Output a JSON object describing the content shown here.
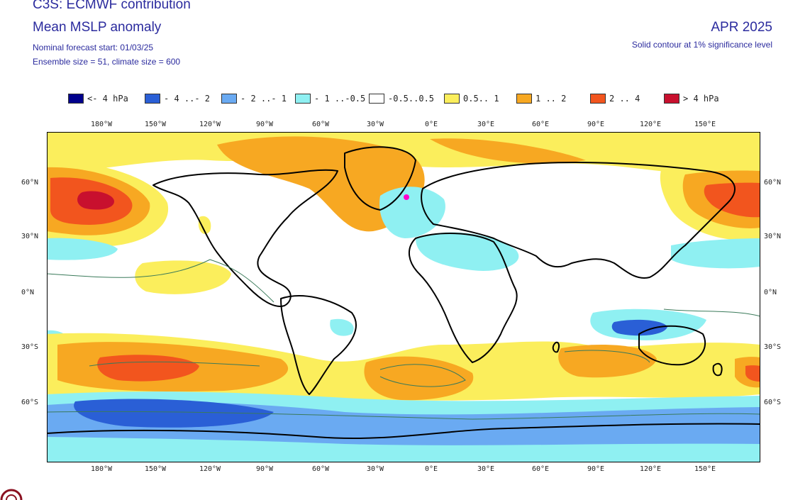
{
  "header": {
    "title": "C3S: ECMWF contribution",
    "subtitle": "Mean MSLP anomaly",
    "forecast_start": "Nominal forecast start: 01/03/25",
    "ensemble": "Ensemble size = 51, climate size = 600",
    "month": "APR 2025",
    "significance": "Solid contour at 1% significance level"
  },
  "legend": [
    {
      "label": "<- 4 hPa",
      "color": "#00008c"
    },
    {
      "label": "- 4 ..- 2",
      "color": "#2a5fd6"
    },
    {
      "label": "- 2 ..- 1",
      "color": "#6aaaf2"
    },
    {
      "label": "- 1 ..-0.5",
      "color": "#8ff0f2"
    },
    {
      "label": "-0.5..0.5",
      "color": "#ffffff"
    },
    {
      "label": "0.5.. 1",
      "color": "#fbee5c"
    },
    {
      "label": "1 .. 2",
      "color": "#f7a822"
    },
    {
      "label": "2 .. 4",
      "color": "#f2551e"
    },
    {
      "label": "> 4 hPa",
      "color": "#c8102e"
    }
  ],
  "axes": {
    "lon_labels": [
      "180°W",
      "150°W",
      "120°W",
      "90°W",
      "60°W",
      "30°W",
      "0°E",
      "30°E",
      "60°E",
      "90°E",
      "120°E",
      "150°E"
    ],
    "lat_labels": [
      "60°N",
      "30°N",
      "0°N",
      "30°S",
      "60°S"
    ]
  },
  "colors": {
    "land_outline": "#000000",
    "border": "#9a9a9a",
    "significance_contour": "#3a7a5a"
  }
}
